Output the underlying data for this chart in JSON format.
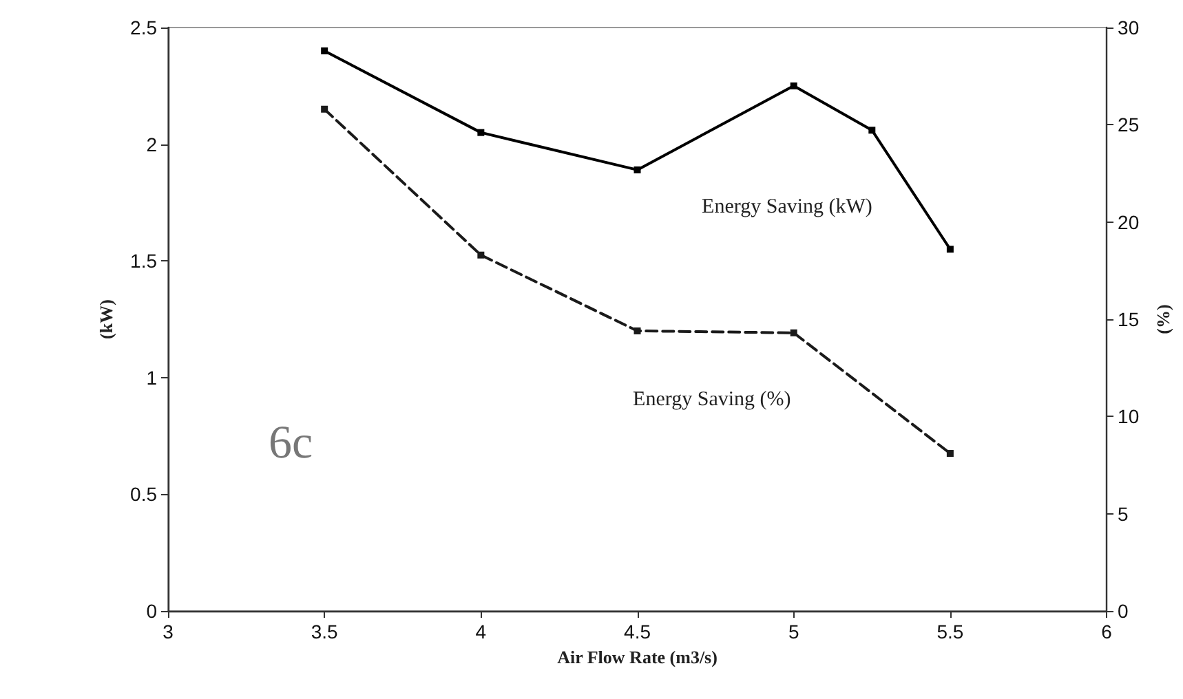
{
  "chart_data": {
    "type": "line",
    "xlabel": "Air Flow Rate (m3/s)",
    "ylabel": "(kW)",
    "y2label": "(%)",
    "xlim": [
      3,
      6
    ],
    "xticks": [
      3,
      3.5,
      4,
      4.5,
      5,
      5.5,
      6
    ],
    "ylim": [
      0,
      2.5
    ],
    "yticks": [
      0,
      0.5,
      1,
      1.5,
      2,
      2.5
    ],
    "y2lim": [
      0,
      30
    ],
    "y2ticks": [
      0,
      5,
      10,
      15,
      20,
      25,
      30
    ],
    "grid": false,
    "legend": false,
    "marker": "square",
    "series": [
      {
        "name": "Energy Saving (kW)",
        "color": "#000000",
        "x": [
          3.5,
          4,
          4.5,
          5,
          5.25,
          5.5
        ],
        "values": [
          2.4,
          2.05,
          1.89,
          2.25,
          2.06,
          1.55
        ],
        "line_style": "solid"
      },
      {
        "name": "Energy Saving (%)",
        "color": "#1a1a1a",
        "axis": "y2",
        "x": [
          3.5,
          4,
          4.5,
          5,
          5.5
        ],
        "values": [
          25.8,
          18.3,
          14.4,
          14.3,
          8.1
        ],
        "line_style": "dashed"
      }
    ],
    "annotations": [
      "6c"
    ]
  }
}
